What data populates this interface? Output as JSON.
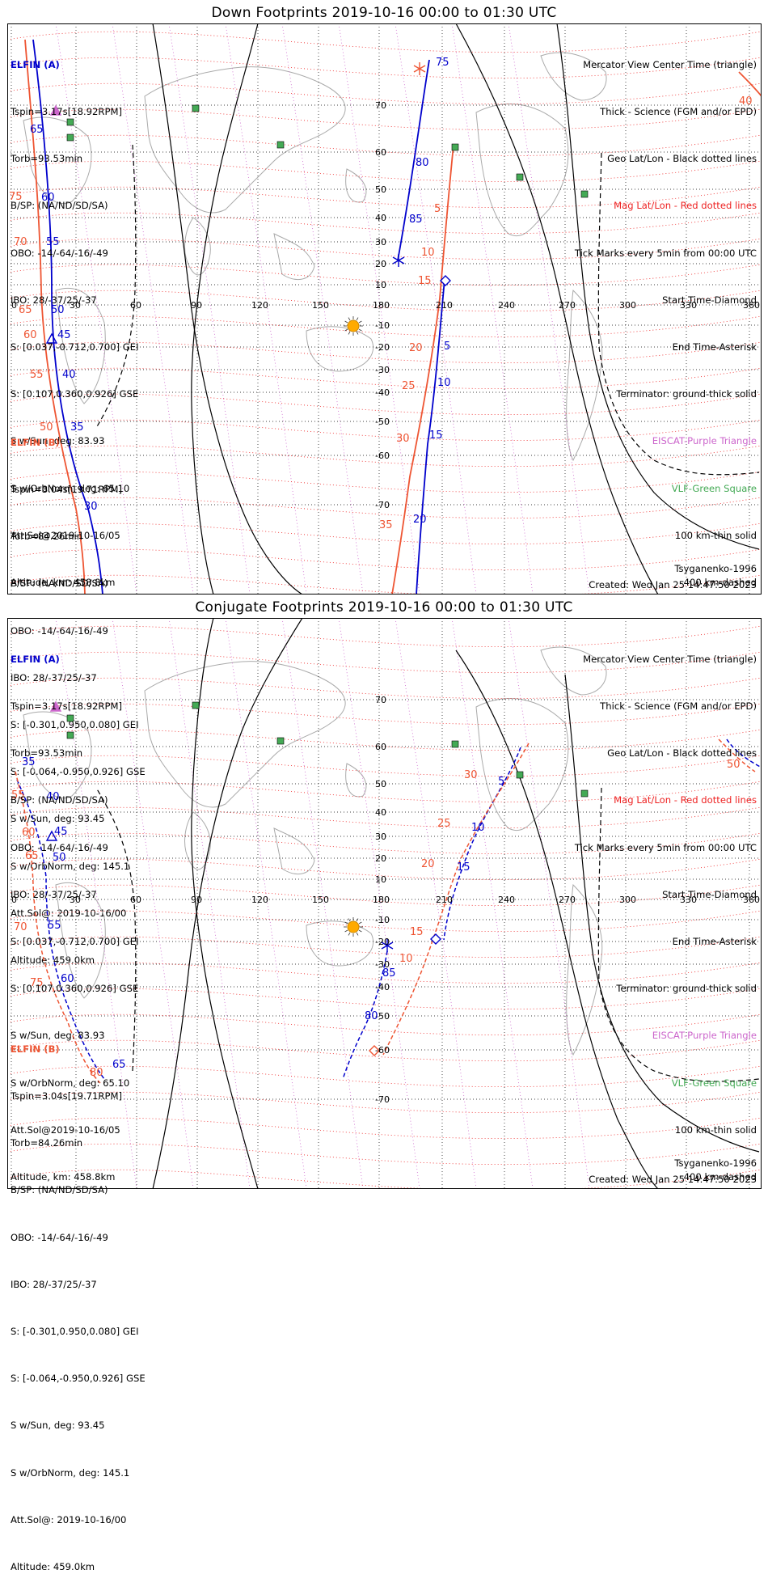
{
  "panels": [
    {
      "title": "Down Footprints 2019-10-16 00:00 to 01:30 UTC",
      "elfin_a": {
        "label": "ELFIN (A)",
        "lines": [
          "Tspin=3.17s[18.92RPM]",
          "Torb=93.53min",
          "B/SP: (NA/ND/SD/SA)",
          "OBO: -14/-64/-16/-49",
          "IBO: 28/-37/25/-37",
          "S: [0.037,-0.712,0.700] GEI",
          "S: [0.107,0.360,0.926] GSE",
          "S w/Sun, deg: 83.93",
          "S w/OrbNorm, deg: 65.10",
          "Att.Sol@2019-10-16/05",
          "Altitude, km: 458.8km"
        ]
      },
      "elfin_b": {
        "label": "ELFIN (B)",
        "lines": [
          "Tspin=3.04s[19.71RPM]",
          "Torb=84.26min",
          "B/SP: (NA/ND/SD/SA)",
          "OBO: -14/-64/-16/-49",
          "IBO: 28/-37/25/-37",
          "S: [-0.301,0.950,0.080] GEI",
          "S: [-0.064,-0.950,0.926] GSE",
          "S w/Sun, deg: 93.45",
          "S w/OrbNorm, deg: 145.1",
          "Att.Sol@: 2019-10-16/00",
          "Altitude: 459.0km"
        ]
      },
      "created": "Created: Wed Jan 25 14:47:50 2023",
      "model": "Tsyganenko-1996"
    },
    {
      "title": "Conjugate Footprints 2019-10-16 00:00 to 01:30 UTC",
      "elfin_a": {
        "label": "ELFIN (A)",
        "lines": [
          "Tspin=3.17s[18.92RPM]",
          "Torb=93.53min",
          "B/SP: (NA/ND/SD/SA)",
          "OBO: -14/-64/-16/-49",
          "IBO: 28/-37/25/-37",
          "S: [0.037,-0.712,0.700] GEI",
          "S: [0.107,0.360,0.926] GSE",
          "S w/Sun, deg: 83.93",
          "S w/OrbNorm, deg: 65.10",
          "Att.Sol@2019-10-16/05",
          "Altitude, km: 458.8km"
        ]
      },
      "elfin_b": {
        "label": "ELFIN (B)",
        "lines": [
          "Tspin=3.04s[19.71RPM]",
          "Torb=84.26min",
          "B/SP: (NA/ND/SD/SA)",
          "OBO: -14/-64/-16/-49",
          "IBO: 28/-37/25/-37",
          "S: [-0.301,0.950,0.080] GEI",
          "S: [-0.064,-0.950,0.926] GSE",
          "S w/Sun, deg: 93.45",
          "S w/OrbNorm, deg: 145.1",
          "Att.Sol@: 2019-10-16/00",
          "Altitude: 459.0km"
        ]
      },
      "created": "Created: Wed Jan 25 14:47:50 2023",
      "model": "Tsyganenko-1996"
    }
  ],
  "legend": [
    {
      "text": "Mercator View Center Time (triangle)",
      "color": "#000000"
    },
    {
      "text": "Thick - Science (FGM and/or EPD)",
      "color": "#000000"
    },
    {
      "text": "Geo Lat/Lon - Black dotted lines",
      "color": "#000000"
    },
    {
      "text": "Mag Lat/Lon - Red dotted lines",
      "color": "#ee2222"
    },
    {
      "text": "Tick Marks every 5min from 00:00 UTC",
      "color": "#000000"
    },
    {
      "text": "Start Time-Diamond",
      "color": "#000000"
    },
    {
      "text": "End Time-Asterisk",
      "color": "#000000"
    },
    {
      "text": "Terminator: ground-thick solid",
      "color": "#000000"
    },
    {
      "text": "EISCAT-Purple Triangle",
      "color": "#cc66cc"
    },
    {
      "text": "VLF-Green Square",
      "color": "#44aa55"
    },
    {
      "text": "100 km-thin solid",
      "color": "#000000"
    },
    {
      "text": "400 km-dashed",
      "color": "#000000"
    }
  ],
  "map": {
    "lon_ticks": [
      "0",
      "30",
      "60",
      "90",
      "120",
      "150",
      "180",
      "210",
      "240",
      "270",
      "300",
      "330",
      "360"
    ],
    "lat_ticks_top": [
      "70",
      "60",
      "50",
      "40",
      "30",
      "20",
      "10",
      "-10",
      "-20",
      "-30",
      "-40",
      "-50",
      "-60",
      "-70"
    ],
    "lat_ticks_bottom": [
      "70",
      "60",
      "50",
      "40",
      "30",
      "20",
      "10",
      "-10",
      "-20",
      "-30",
      "-40",
      "-50",
      "-60",
      "-70"
    ]
  },
  "top_track_labels": {
    "a_right": [
      "75",
      "80",
      "85",
      "5",
      "10",
      "15",
      "20"
    ],
    "b_right": [
      "5",
      "10",
      "15",
      "20",
      "25",
      "30",
      "35"
    ],
    "a_left": [
      "65",
      "60",
      "55",
      "50",
      "45",
      "40",
      "35",
      "30"
    ],
    "b_left": [
      "75",
      "70",
      "65",
      "60",
      "55",
      "50"
    ],
    "b_top_right": "40"
  },
  "bottom_track_labels": {
    "a_right": [
      "5",
      "10",
      "15",
      "85",
      "80"
    ],
    "b_right": [
      "30",
      "25",
      "20",
      "15",
      "10"
    ],
    "a_left": [
      "35",
      "40",
      "45",
      "50",
      "55",
      "60",
      "65"
    ],
    "b_left": [
      "55",
      "60",
      "65",
      "70",
      "75",
      "80"
    ],
    "b_top_right": "50"
  },
  "colors": {
    "sat_a": "#0000cc",
    "sat_b": "#ee5533",
    "mag_grid": "#ee2222",
    "geo_grid": "#000000",
    "coast": "#aaaaaa",
    "vlf": "#44aa55",
    "eiscat": "#cc66cc",
    "sun": "#ffaa00"
  }
}
